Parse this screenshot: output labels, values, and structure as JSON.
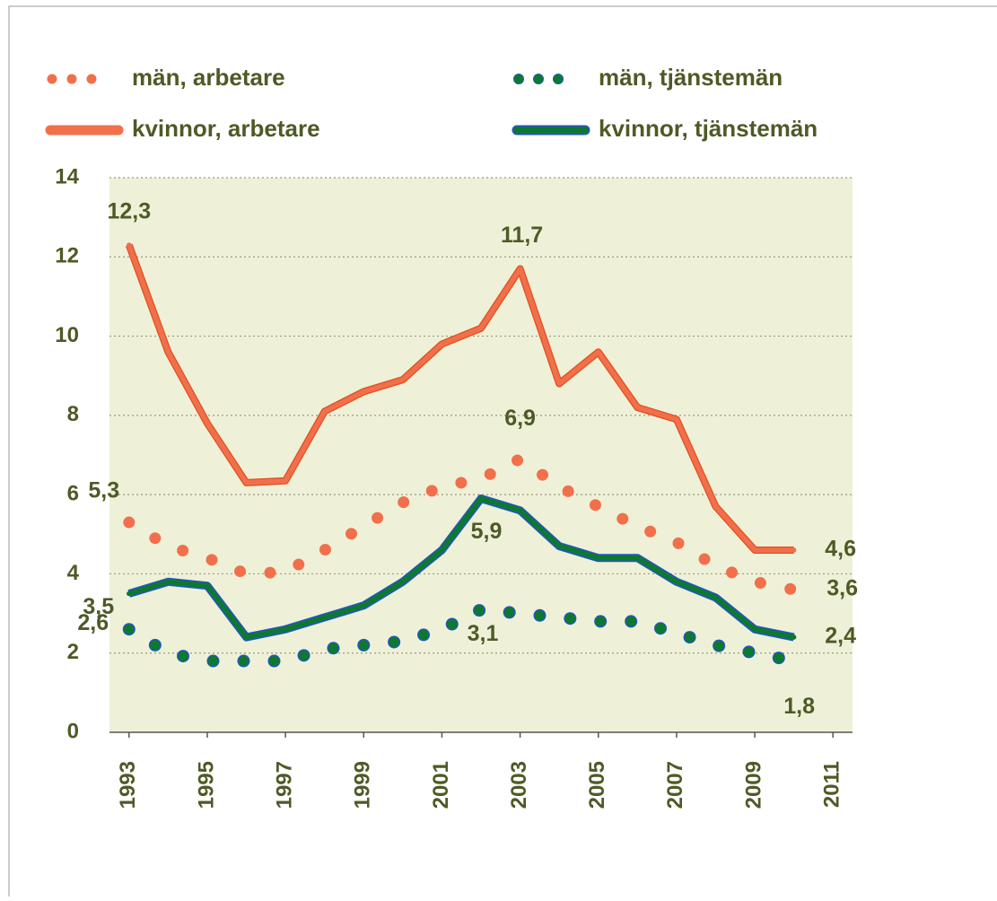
{
  "chart_data": {
    "type": "line",
    "x": [
      1993,
      1994,
      1995,
      1996,
      1997,
      1998,
      1999,
      2000,
      2001,
      2002,
      2003,
      2004,
      2005,
      2006,
      2007,
      2008,
      2009,
      2010
    ],
    "series": [
      {
        "name": "män, arbetare",
        "color": "#f26f4c",
        "line_style": "dotted",
        "values": [
          5.3,
          4.7,
          4.4,
          4.0,
          4.05,
          4.6,
          5.2,
          5.8,
          6.2,
          6.4,
          6.9,
          6.2,
          5.7,
          5.2,
          4.8,
          4.2,
          3.8,
          3.6
        ],
        "value_labels": [
          "5,3",
          null,
          null,
          null,
          null,
          null,
          null,
          null,
          null,
          null,
          "6,9",
          null,
          null,
          null,
          null,
          null,
          null,
          "3,6"
        ]
      },
      {
        "name": "män, tjänstemän",
        "color": "#0b7a2e",
        "line_style": "dotted",
        "values": [
          2.6,
          2.0,
          1.8,
          1.8,
          1.8,
          2.1,
          2.2,
          2.3,
          2.6,
          3.1,
          3.0,
          2.9,
          2.8,
          2.8,
          2.5,
          2.2,
          2.0,
          1.8
        ],
        "value_labels": [
          "2,6",
          null,
          null,
          null,
          null,
          null,
          null,
          null,
          null,
          "3,1",
          null,
          null,
          null,
          null,
          null,
          null,
          null,
          "1,8"
        ]
      },
      {
        "name": "kvinnor, arbetare",
        "color": "#f26f4c",
        "line_style": "solid",
        "values": [
          12.3,
          9.6,
          7.8,
          6.3,
          6.35,
          8.1,
          8.6,
          8.9,
          9.8,
          10.2,
          11.7,
          8.8,
          9.6,
          8.2,
          7.9,
          5.7,
          4.6,
          4.6
        ],
        "value_labels": [
          "12,3",
          null,
          null,
          null,
          null,
          null,
          null,
          null,
          null,
          null,
          "11,7",
          null,
          null,
          null,
          null,
          null,
          null,
          "4,6"
        ]
      },
      {
        "name": "kvinnor, tjänstemän",
        "color": "#0b7a2e",
        "line_style": "solid",
        "values": [
          3.5,
          3.8,
          3.7,
          2.4,
          2.6,
          2.9,
          3.2,
          3.8,
          4.6,
          5.9,
          5.6,
          4.7,
          4.4,
          4.4,
          3.8,
          3.4,
          2.6,
          2.4
        ],
        "value_labels": [
          "3,5",
          null,
          null,
          null,
          null,
          null,
          null,
          null,
          null,
          "5,9",
          null,
          null,
          null,
          null,
          null,
          null,
          null,
          "2,4"
        ]
      }
    ],
    "xlim": [
      1992.5,
      2011.5
    ],
    "xticks": [
      1993,
      1995,
      1997,
      1999,
      2001,
      2003,
      2005,
      2007,
      2009,
      2011
    ],
    "ylim": [
      0,
      14
    ],
    "yticks": [
      0,
      2,
      4,
      6,
      8,
      10,
      12,
      14
    ],
    "grid": true
  }
}
